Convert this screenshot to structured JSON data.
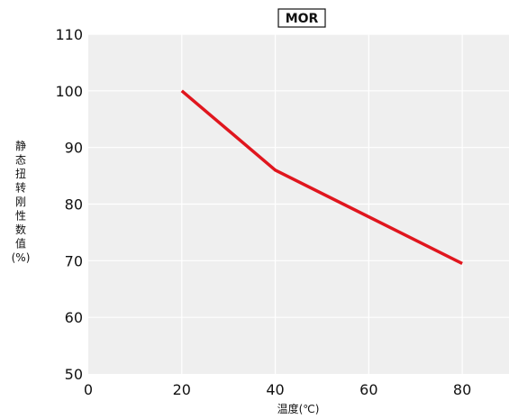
{
  "chart_data": {
    "type": "line",
    "title": "MOR",
    "xlabel": "温度(℃)",
    "ylabel": "静态扭转刚性数值(%)",
    "ylabel_chars": [
      "静",
      "态",
      "扭",
      "转",
      "刚",
      "性",
      "数",
      "值",
      "(%)"
    ],
    "xlim": [
      0,
      90
    ],
    "ylim": [
      50,
      110
    ],
    "x_ticks": [
      0,
      20,
      40,
      60,
      80
    ],
    "y_ticks": [
      50,
      60,
      70,
      80,
      90,
      100,
      110
    ],
    "grid": true,
    "series": [
      {
        "x": [
          20,
          40,
          80
        ],
        "y": [
          100,
          86,
          69.5
        ],
        "color": "#e0161e"
      }
    ],
    "plot_background": "#efefef",
    "grid_color": "#ffffff"
  }
}
